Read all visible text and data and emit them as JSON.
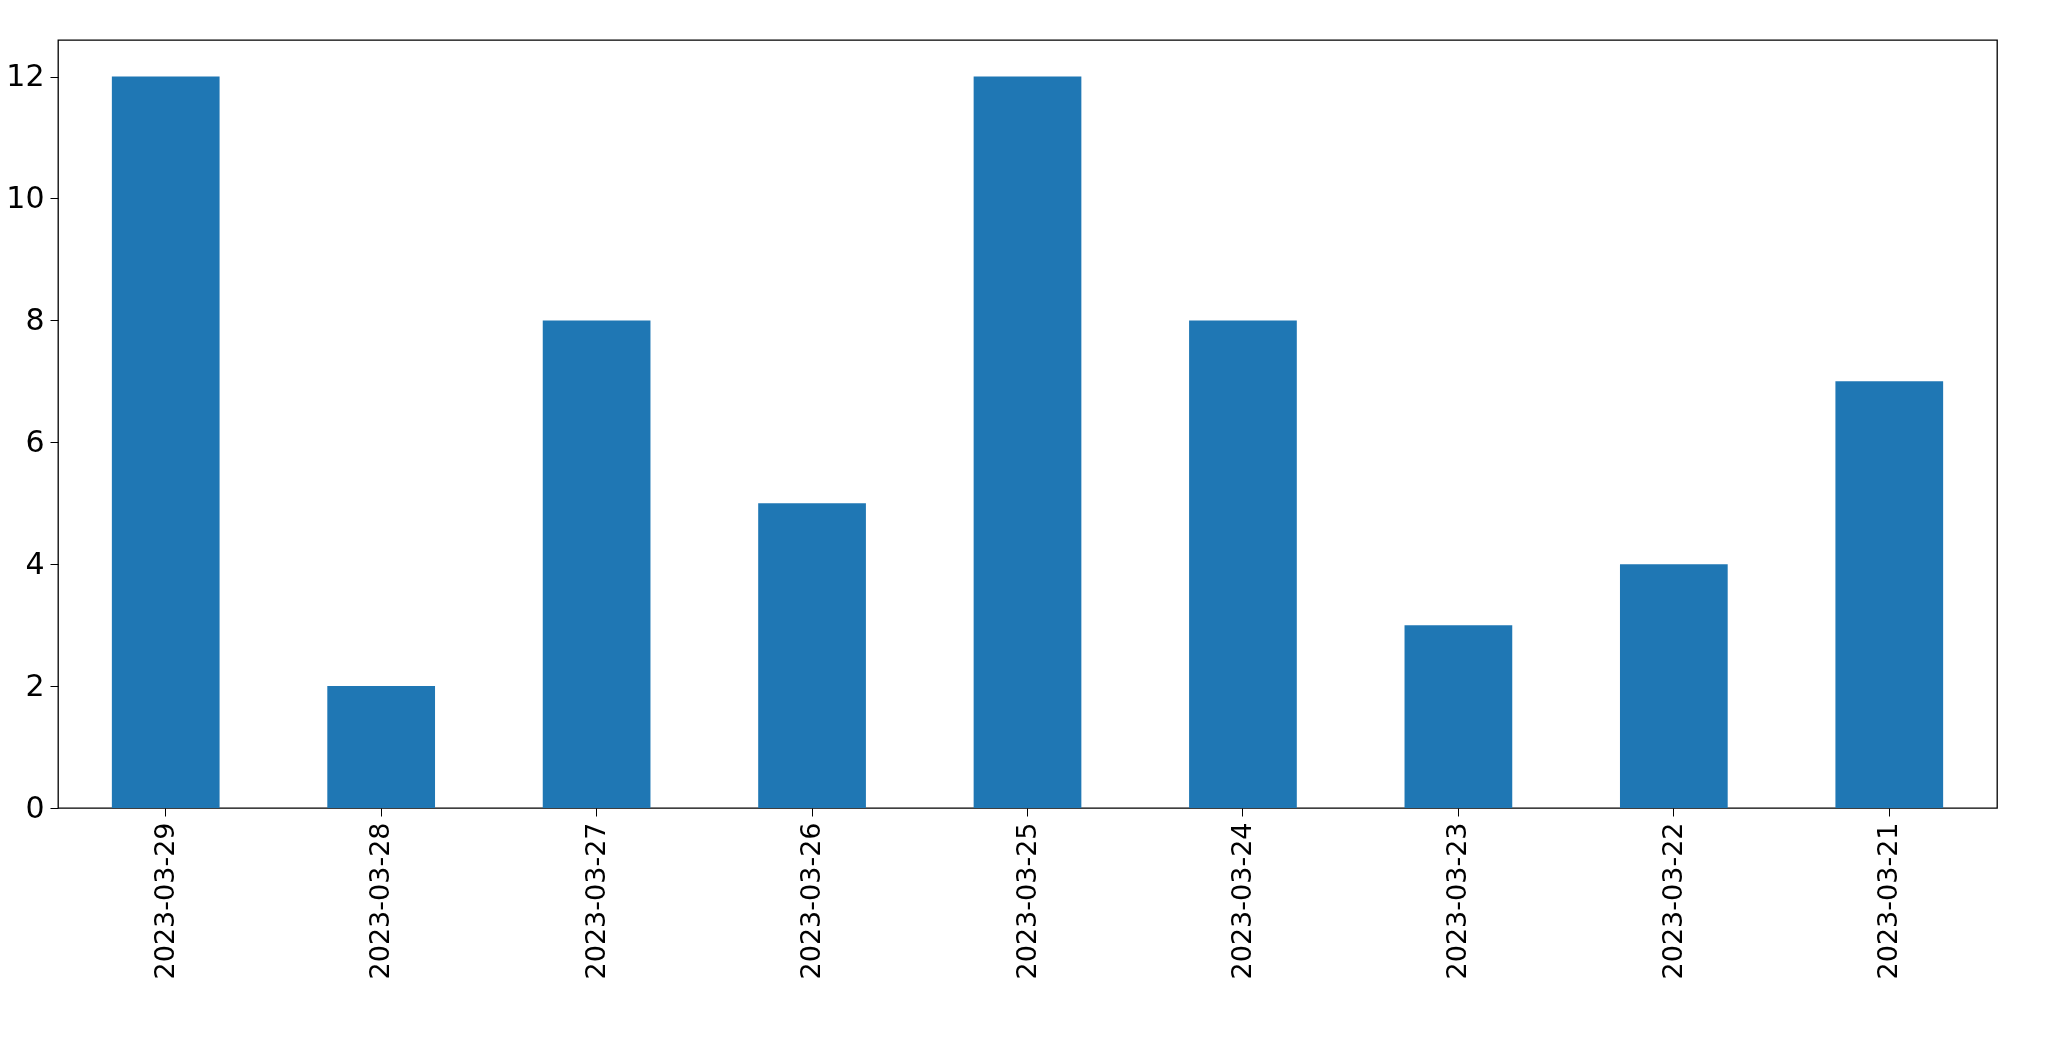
{
  "chart_data": {
    "type": "bar",
    "categories": [
      "2023-03-29",
      "2023-03-28",
      "2023-03-27",
      "2023-03-26",
      "2023-03-25",
      "2023-03-24",
      "2023-03-23",
      "2023-03-22",
      "2023-03-21"
    ],
    "values": [
      12,
      2,
      8,
      5,
      12,
      8,
      3,
      4,
      7
    ],
    "color": "#1f77b4",
    "ylim": [
      0,
      12.6
    ],
    "yticks": [
      0,
      2,
      4,
      6,
      8,
      10,
      12
    ],
    "grid": false
  }
}
